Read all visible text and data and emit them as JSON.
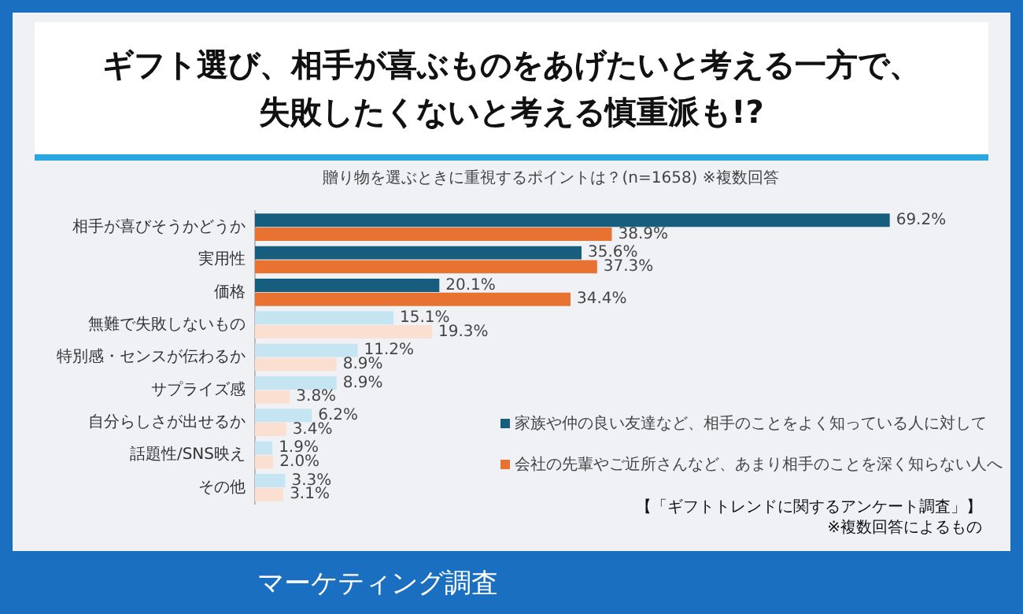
{
  "chart_data": {
    "type": "bar",
    "orientation": "horizontal",
    "title": "ギフト選び、相手が喜ぶものをあげたいと考える一方で、失敗したくないと考える慎重派も!?",
    "subtitle": "贈り物を選ぶときに重視するポイントは？(n=1658) ※複数回答",
    "categories": [
      "相手が喜びそうかどうか",
      "実用性",
      "価格",
      "無難で失敗しないもの",
      "特別感・センスが伝わるか",
      "サプライズ感",
      "自分らしさが出せるか",
      "話題性/SNS映え",
      "その他"
    ],
    "series": [
      {
        "name": "家族や仲の良い友達など、相手のことをよく知っている人に対して",
        "color": "#175e7e",
        "colors": [
          "#175e7e",
          "#175e7e",
          "#175e7e",
          "#c5e5f3",
          "#c5e5f3",
          "#c5e5f3",
          "#c5e5f3",
          "#c5e5f3",
          "#c5e5f3"
        ],
        "values": [
          69.2,
          35.6,
          20.1,
          15.1,
          11.2,
          8.9,
          6.2,
          1.9,
          3.3
        ],
        "value_labels": [
          "69.2%",
          "35.6%",
          "20.1%",
          "15.1%",
          "11.2%",
          "8.9%",
          "6.2%",
          "1.9%",
          "3.3%"
        ]
      },
      {
        "name": "会社の先輩やご近所さんなど、あまり相手のことを深く知らない人へ",
        "color": "#e87232",
        "colors": [
          "#e87232",
          "#e87232",
          "#e87232",
          "#fbe0d2",
          "#fbe0d2",
          "#fbe0d2",
          "#fbe0d2",
          "#fbe0d2",
          "#fbe0d2"
        ],
        "values": [
          38.9,
          37.3,
          34.4,
          19.3,
          8.9,
          3.8,
          3.4,
          2.0,
          3.1
        ],
        "value_labels": [
          "38.9%",
          "37.3%",
          "34.4%",
          "19.3%",
          "8.9%",
          "3.8%",
          "3.4%",
          "2.0%",
          "3.1%"
        ]
      }
    ],
    "legend": "right",
    "annotations": [
      "【「ギフトトレンドに関するアンケート調査」】",
      "※複数回答によるもの",
      "マーケティング調査"
    ]
  }
}
